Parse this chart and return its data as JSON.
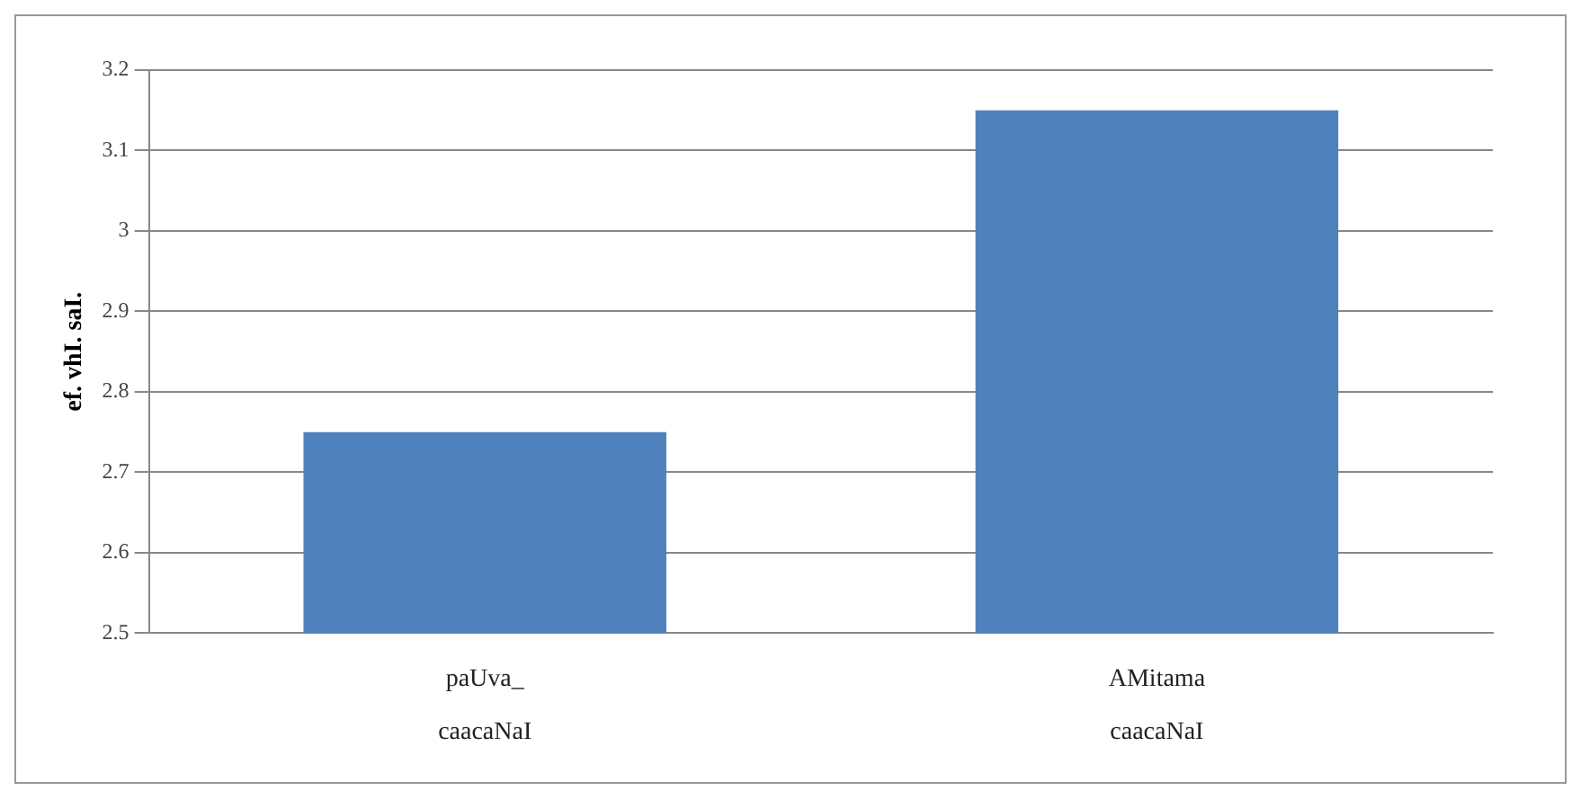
{
  "chart_data": {
    "type": "bar",
    "ylabel": "ef. vhI. saI.",
    "categories": [
      "paUva_\ncaacaNaI",
      "AMitama\ncaacaNaI"
    ],
    "values": [
      2.75,
      3.15
    ],
    "color": "#4f81bd",
    "ylim": [
      2.5,
      3.2
    ],
    "yticks": [
      2.5,
      2.6,
      2.7,
      2.8,
      2.9,
      3,
      3.1,
      3.2
    ],
    "grid": "y",
    "legend": false
  }
}
